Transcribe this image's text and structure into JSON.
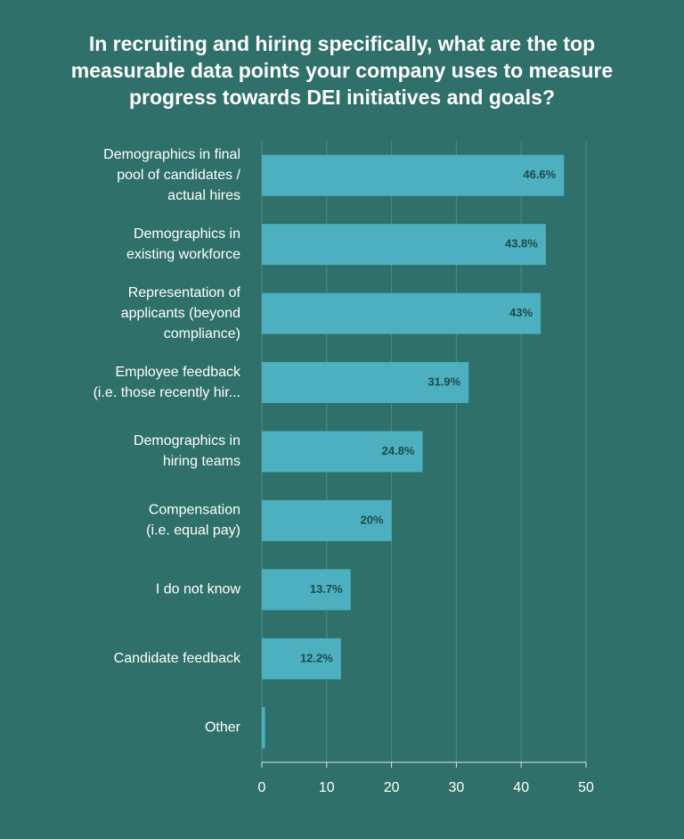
{
  "chart_data": {
    "type": "barh",
    "title": "In recruiting and hiring specifically, what are the top measurable data points your company uses to measure progress towards DEI initiatives and goals?",
    "categories": [
      [
        "Demographics in final",
        "pool of candidates /",
        "actual hires"
      ],
      [
        "Demographics in",
        "existing workforce"
      ],
      [
        "Representation of",
        "applicants (beyond",
        "compliance)"
      ],
      [
        "Employee feedback",
        "(i.e. those recently hir..."
      ],
      [
        "Demographics in",
        "hiring teams"
      ],
      [
        "Compensation",
        "(i.e. equal pay)"
      ],
      [
        "I do not know"
      ],
      [
        "Candidate feedback"
      ],
      [
        "Other"
      ]
    ],
    "values": [
      46.6,
      43.8,
      43,
      31.9,
      24.8,
      20,
      13.7,
      12.2,
      0.5
    ],
    "value_labels": [
      "46.6%",
      "43.8%",
      "43%",
      "31.9%",
      "24.8%",
      "20%",
      "13.7%",
      "12.2%",
      null
    ],
    "color": "#4cb0c1",
    "xlim": [
      0,
      50
    ],
    "xticks": [
      0,
      10,
      20,
      30,
      40,
      50
    ],
    "grid": true
  }
}
